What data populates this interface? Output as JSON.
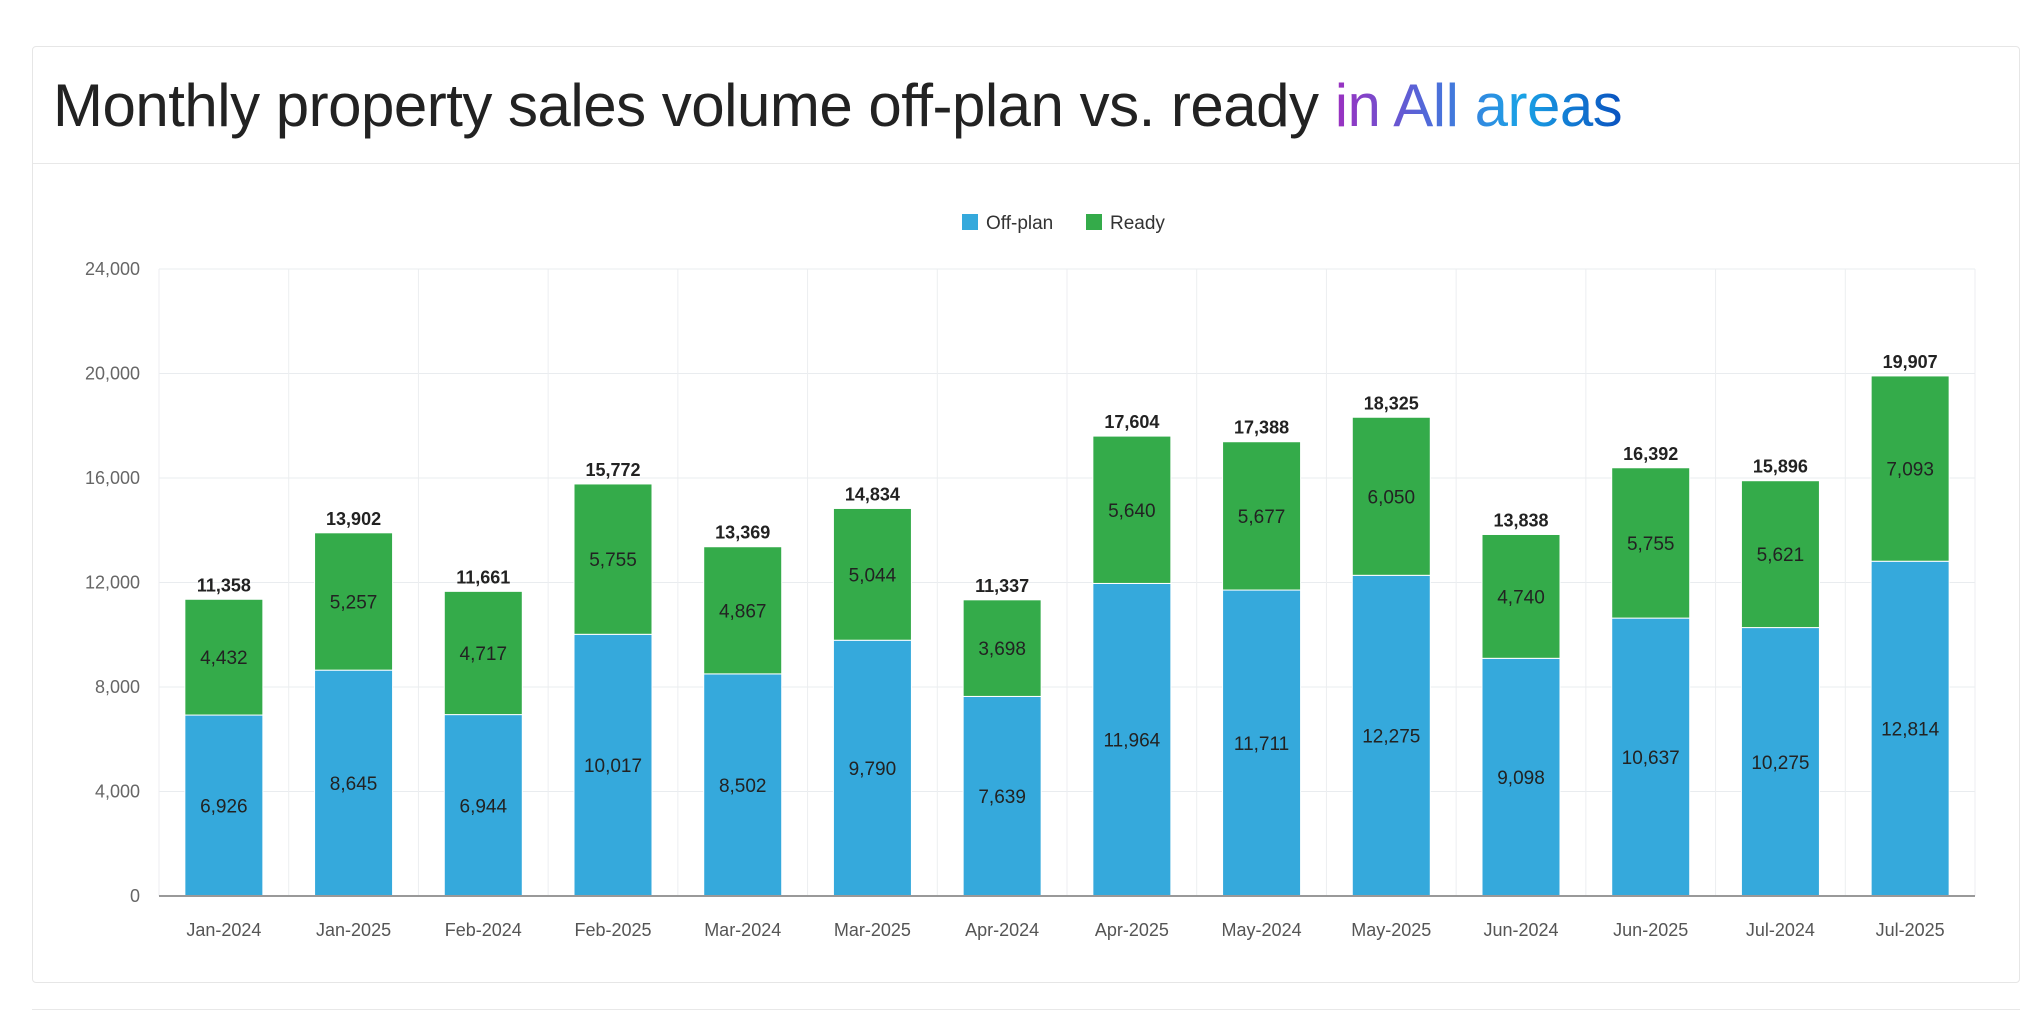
{
  "title": {
    "main": "Monthly property sales volume off-plan vs. ready",
    "highlight": "in All areas"
  },
  "chart_data": {
    "type": "bar",
    "stacked": true,
    "title": "Monthly property sales volume off-plan vs. ready in All areas",
    "categories": [
      "Jan-2024",
      "Jan-2025",
      "Feb-2024",
      "Feb-2025",
      "Mar-2024",
      "Mar-2025",
      "Apr-2024",
      "Apr-2025",
      "May-2024",
      "May-2025",
      "Jun-2024",
      "Jun-2025",
      "Jul-2024",
      "Jul-2025"
    ],
    "series": [
      {
        "name": "Off-plan",
        "color": "#35a9dc",
        "values": [
          6926,
          8645,
          6944,
          10017,
          8502,
          9790,
          7639,
          11964,
          11711,
          12275,
          9098,
          10637,
          10275,
          12814
        ]
      },
      {
        "name": "Ready",
        "color": "#34ab4a",
        "values": [
          4432,
          5257,
          4717,
          5755,
          4867,
          5044,
          3698,
          5640,
          5677,
          6050,
          4740,
          5755,
          5621,
          7093
        ]
      }
    ],
    "totals": [
      11358,
      13902,
      11661,
      15772,
      13369,
      14834,
      11337,
      17604,
      17388,
      18325,
      13838,
      16392,
      15896,
      19907
    ],
    "ylim": [
      0,
      24000
    ],
    "yticks": [
      0,
      4000,
      8000,
      12000,
      16000,
      20000,
      24000
    ],
    "ytick_labels": [
      "0",
      "4,000",
      "8,000",
      "12,000",
      "16,000",
      "20,000",
      "24,000"
    ],
    "xlabel": "",
    "ylabel": "",
    "grid": true,
    "legend": "top-center"
  }
}
